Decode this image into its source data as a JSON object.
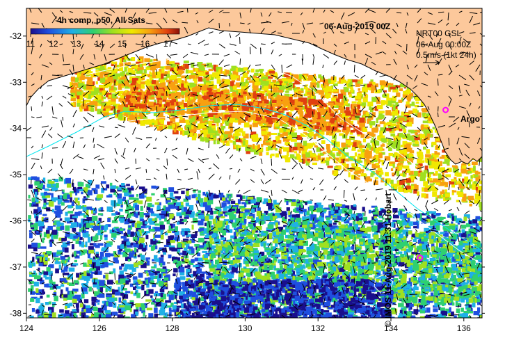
{
  "map": {
    "title": "06-Aug-2019 00Z",
    "colorbar": {
      "label": "4h comp, p50, All Sats",
      "ticks": [
        "11",
        "12",
        "13",
        "14",
        "15",
        "16",
        "17"
      ],
      "range": [
        11,
        17.5
      ]
    },
    "info": {
      "line1": "NRT00 GSL",
      "line2": "06-Aug 00:00Z",
      "line3": "0.5m/s (1kt 24h)"
    },
    "argo_label": "Argo",
    "credit": "© IMOS 11-Aug-2019 11:31 Hobart",
    "x_ticks": [
      "124",
      "126",
      "128",
      "130",
      "132",
      "134",
      "136"
    ],
    "y_ticks": [
      "-32",
      "-33",
      "-34",
      "-35",
      "-36",
      "-37",
      "-38"
    ],
    "lon_range": [
      124,
      136.5
    ],
    "lat_range": [
      -38.1,
      -31.4
    ],
    "argo_floats": [
      {
        "lon": 135.5,
        "lat": -33.6
      },
      {
        "lon": 134.8,
        "lat": -36.8
      }
    ],
    "colors": {
      "land": "#fcc89b",
      "coast": "#000000",
      "argo": "#ff00ff",
      "isobath_200": "#00e5ee",
      "isobath_other": "#ffffff"
    }
  }
}
